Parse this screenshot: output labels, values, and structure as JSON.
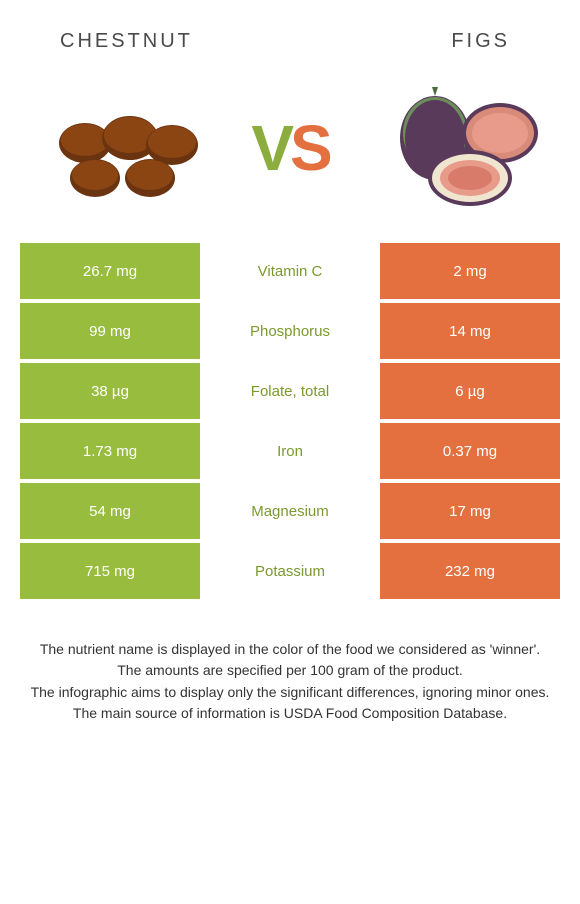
{
  "header": {
    "left_title": "CHESTNUT",
    "right_title": "FIGS"
  },
  "vs": {
    "v": "V",
    "s": "S"
  },
  "colors": {
    "left": "#97bc3e",
    "right": "#e4703f",
    "left_text": "#7a9a2e",
    "right_text": "#e4703f",
    "bg": "#ffffff"
  },
  "table": {
    "rows": [
      {
        "left": "26.7 mg",
        "label": "Vitamin C",
        "right": "2 mg",
        "winner": "left"
      },
      {
        "left": "99 mg",
        "label": "Phosphorus",
        "right": "14 mg",
        "winner": "left"
      },
      {
        "left": "38 µg",
        "label": "Folate, total",
        "right": "6 µg",
        "winner": "left"
      },
      {
        "left": "1.73 mg",
        "label": "Iron",
        "right": "0.37 mg",
        "winner": "left"
      },
      {
        "left": "54 mg",
        "label": "Magnesium",
        "right": "17 mg",
        "winner": "left"
      },
      {
        "left": "715 mg",
        "label": "Potassium",
        "right": "232 mg",
        "winner": "left"
      }
    ]
  },
  "footer": {
    "lines": [
      "The nutrient name is displayed in the color of the food we considered as 'winner'.",
      "The amounts are specified per 100 gram of the product.",
      "The infographic aims to display only the significant differences, ignoring minor ones.",
      "The main source of information is USDA Food Composition Database."
    ]
  }
}
